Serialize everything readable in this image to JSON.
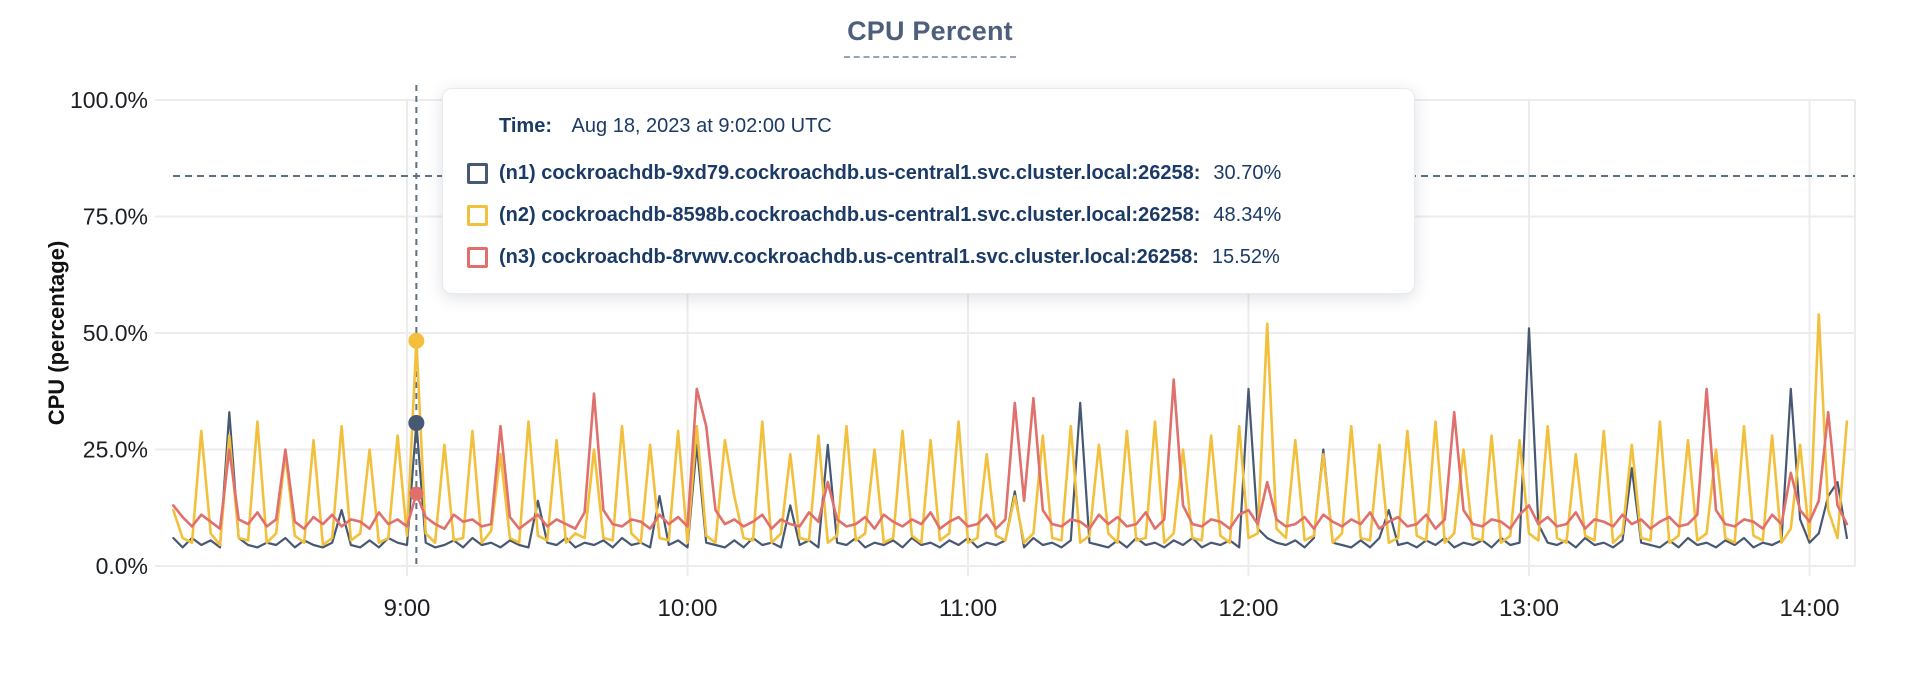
{
  "tooltip": {
    "time_label": "Time:",
    "time_value": "Aug 18, 2023 at 9:02:00 UTC",
    "rows": [
      {
        "name": "(n1) cockroachdb-9xd79.cockroachdb.us-central1.svc.cluster.local:26258:",
        "value": "30.70%",
        "color": "#475872"
      },
      {
        "name": "(n2) cockroachdb-8598b.cockroachdb.us-central1.svc.cluster.local:26258:",
        "value": "48.34%",
        "color": "#f2c03c"
      },
      {
        "name": "(n3) cockroachdb-8rvwv.cockroachdb.us-central1.svc.cluster.local:26258:",
        "value": "15.52%",
        "color": "#e0706c"
      }
    ]
  },
  "colors": {
    "grid": "#ececec",
    "guide": "#5b7186",
    "tick_text": "#1b1e23",
    "axis_title_text": "#111111"
  },
  "chart_data": {
    "type": "line",
    "title": "CPU Percent",
    "ylabel": "CPU (percentage)",
    "ylim": [
      0,
      100
    ],
    "grid": true,
    "y_tick_values": [
      0,
      25,
      50,
      75,
      100
    ],
    "y_tick_labels": [
      "0.0%",
      "25.0%",
      "50.0%",
      "75.0%",
      "100.0%"
    ],
    "x_tick_minutes": [
      540,
      600,
      660,
      720,
      780,
      840
    ],
    "x_tick_labels": [
      "9:00",
      "10:00",
      "11:00",
      "12:00",
      "13:00",
      "14:00"
    ],
    "x_start_minutes": 490,
    "x_step_minutes": 2,
    "threshold_percent": 83.7,
    "hover_index": 26,
    "hover_values": {
      "n1": 30.7,
      "n2": 48.34,
      "n3": 15.52
    },
    "series": [
      {
        "id": "n1",
        "name": "(n1) cockroachdb-9xd79.cockroachdb.us-central1.svc.cluster.local:26258",
        "color": "#475872",
        "width": 2.2,
        "values": [
          6,
          4,
          6,
          4.5,
          5.5,
          4,
          33,
          6,
          4.5,
          4,
          5,
          4.5,
          6,
          4,
          5.5,
          4.5,
          4,
          5,
          12,
          4.5,
          4,
          5.5,
          4,
          6,
          5,
          4.5,
          30.7,
          5,
          4,
          4.5,
          5.5,
          4,
          6,
          4.5,
          5,
          4,
          5.5,
          4.5,
          4,
          14,
          5,
          4.5,
          6,
          4,
          5,
          4.5,
          5.5,
          4,
          6,
          4.5,
          5,
          4,
          15,
          4.5,
          5.5,
          4,
          26,
          5,
          4.5,
          4,
          5.5,
          4,
          6,
          4.5,
          5,
          4,
          13,
          4.5,
          5.5,
          4,
          26,
          5,
          4.5,
          6,
          4,
          5,
          4.5,
          5.5,
          4,
          6,
          4.5,
          5,
          4,
          5.5,
          4.5,
          6,
          4,
          5,
          4.5,
          5.5,
          16,
          4,
          6,
          4.5,
          5,
          4,
          5.5,
          35,
          5,
          4.5,
          4,
          5.5,
          4,
          6,
          4.5,
          5,
          4,
          5.5,
          4.5,
          6,
          4,
          5,
          4.5,
          5.5,
          4,
          38,
          8,
          6,
          5,
          4.5,
          5.5,
          4,
          6,
          25,
          5,
          4.5,
          4,
          5.5,
          4,
          6,
          12,
          4.5,
          5,
          4,
          5.5,
          4.5,
          6,
          4,
          5,
          4.5,
          5.5,
          4,
          6,
          4.5,
          5,
          51,
          9,
          5,
          4.5,
          5.5,
          4,
          6,
          4.5,
          5,
          4,
          5.5,
          21,
          5,
          4.5,
          4,
          5.5,
          4,
          6,
          4.5,
          5,
          4,
          5.5,
          4.5,
          6,
          4,
          5,
          4.5,
          5.5,
          38,
          10,
          5,
          7,
          15,
          18,
          6
        ]
      },
      {
        "id": "n2",
        "name": "(n2) cockroachdb-8598b.cockroachdb.us-central1.svc.cluster.local:26258",
        "color": "#f2c03c",
        "width": 2.6,
        "values": [
          12,
          6,
          5,
          29,
          7,
          4.5,
          28,
          6,
          5.5,
          31,
          5,
          7,
          24,
          6.5,
          5,
          27,
          4.5,
          6,
          30,
          5.5,
          7,
          25,
          5,
          6,
          28,
          6.5,
          48.34,
          7,
          5,
          26,
          5.5,
          6,
          29,
          5,
          7.5,
          24,
          6,
          5,
          31,
          6.5,
          5.5,
          27,
          5,
          7,
          6,
          25,
          6,
          5.5,
          30,
          7,
          5,
          26,
          6,
          5.5,
          29,
          5,
          30,
          6.5,
          5,
          27,
          15,
          6,
          5.5,
          31,
          5,
          7,
          24,
          6,
          5.5,
          28,
          5,
          6.5,
          30,
          5.5,
          7,
          25,
          5,
          6,
          29,
          6.5,
          5,
          27,
          5.5,
          7,
          31,
          5,
          6,
          24,
          6.5,
          5.5,
          15,
          5,
          7,
          28,
          6,
          5.5,
          30,
          5,
          6.5,
          26,
          7,
          5,
          29,
          5.5,
          6,
          31,
          5,
          7,
          25,
          6,
          5.5,
          28,
          6.5,
          5,
          30,
          6,
          7,
          52,
          8,
          6,
          27,
          5.5,
          6.5,
          24,
          5,
          7,
          30,
          6,
          5.5,
          26,
          5,
          6,
          29,
          6.5,
          5.5,
          31,
          5,
          7,
          25,
          6,
          5.5,
          28,
          5,
          6.5,
          27,
          7,
          5.5,
          30,
          6,
          5,
          24,
          6.5,
          5.5,
          29,
          5,
          7,
          26,
          6,
          5.5,
          31,
          5,
          6.5,
          27,
          5.5,
          7,
          25,
          6,
          5,
          30,
          6.5,
          5.5,
          28,
          5,
          8,
          26,
          6,
          54,
          12,
          6,
          31
        ]
      },
      {
        "id": "n3",
        "name": "(n3) cockroachdb-8rvwv.cockroachdb.us-central1.svc.cluster.local:26258",
        "color": "#e0706c",
        "width": 2.6,
        "values": [
          13,
          10.5,
          8.5,
          11,
          9.5,
          8,
          25,
          10,
          9,
          11.5,
          8.5,
          10,
          25,
          9.5,
          8,
          10.5,
          9,
          11,
          8.5,
          10,
          9.5,
          8,
          11.5,
          9,
          10,
          8.5,
          15.52,
          10.5,
          9,
          8,
          11,
          9.5,
          10,
          8.5,
          9,
          30,
          10.5,
          8,
          9.5,
          11,
          8.5,
          10,
          9,
          8,
          11.5,
          37,
          12,
          9,
          8.5,
          10,
          9.5,
          8,
          11,
          9,
          10.5,
          8.5,
          38,
          30,
          12,
          9,
          10,
          8.5,
          9.5,
          11,
          8,
          10,
          9,
          8.5,
          11.5,
          9.5,
          18,
          10,
          8.5,
          9,
          10.5,
          8,
          11,
          9.5,
          8.5,
          10,
          9,
          11.5,
          8,
          9.5,
          10.5,
          8.5,
          9,
          11,
          8,
          10,
          35,
          14,
          36,
          12,
          9,
          8.5,
          10,
          9.5,
          8,
          11,
          9,
          10.5,
          8.5,
          9,
          11.5,
          8,
          10,
          40,
          13,
          9,
          8.5,
          10,
          9.5,
          8,
          11,
          12,
          9,
          18,
          10,
          8.5,
          9,
          10.5,
          8,
          11,
          9.5,
          8.5,
          10,
          9,
          11.5,
          8,
          9.5,
          10.5,
          8.5,
          9,
          11,
          8,
          10,
          33,
          12,
          9,
          8.5,
          10,
          9.5,
          8,
          11,
          13,
          9,
          10.5,
          8.5,
          9,
          11.5,
          8,
          10,
          9.5,
          8.5,
          11,
          9,
          10,
          8,
          9.5,
          10.5,
          8.5,
          9,
          11,
          38,
          12,
          9,
          8.5,
          10,
          9.5,
          8,
          11,
          9,
          20,
          12,
          9.5,
          14,
          33,
          13,
          9
        ]
      }
    ]
  }
}
